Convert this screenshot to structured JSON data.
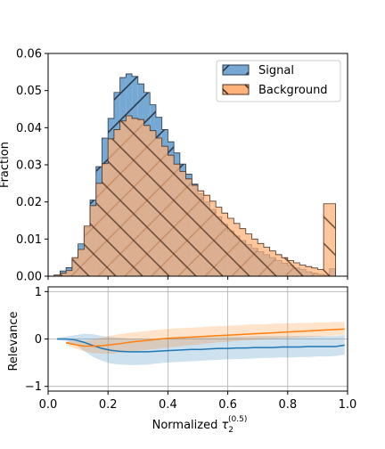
{
  "chart_data": [
    {
      "type": "histogram",
      "ylabel": "Fraction",
      "ylim": [
        0,
        0.06
      ],
      "xlim": [
        0,
        1
      ],
      "yticks": [
        "0.00",
        "0.01",
        "0.02",
        "0.03",
        "0.04",
        "0.05",
        "0.06"
      ],
      "grid": false,
      "legend_position": "top-right",
      "bin_edges_start": 0.02,
      "bin_width": 0.02,
      "series": [
        {
          "name": "Signal",
          "color": "#1f77b4",
          "hatch": "//",
          "values": [
            0.0003,
            0.0014,
            0.0023,
            0.0046,
            0.0087,
            0.0132,
            0.0205,
            0.0295,
            0.0372,
            0.0425,
            0.0495,
            0.0535,
            0.0545,
            0.0538,
            0.0518,
            0.0495,
            0.0462,
            0.0428,
            0.0395,
            0.0362,
            0.0332,
            0.0302,
            0.0275,
            0.0248,
            0.0222,
            0.02,
            0.018,
            0.016,
            0.014,
            0.0122,
            0.0108,
            0.0096,
            0.0085,
            0.0075,
            0.0066,
            0.0058,
            0.005,
            0.0042,
            0.0035,
            0.0029,
            0.0022,
            0.0018,
            0.0012,
            0.0008,
            0.0005,
            0.0003,
            0.002
          ]
        },
        {
          "name": "Background",
          "color": "#ff7f0e",
          "hatch": "\\\\",
          "values": [
            0.0003,
            0.0008,
            0.0015,
            0.005,
            0.0072,
            0.0135,
            0.019,
            0.025,
            0.0303,
            0.037,
            0.0395,
            0.0418,
            0.0432,
            0.0425,
            0.0422,
            0.0406,
            0.0392,
            0.0372,
            0.035,
            0.0326,
            0.0302,
            0.0282,
            0.0262,
            0.0245,
            0.023,
            0.0218,
            0.0202,
            0.0186,
            0.017,
            0.0156,
            0.0142,
            0.0128,
            0.0114,
            0.01,
            0.0088,
            0.0078,
            0.0068,
            0.0058,
            0.005,
            0.0042,
            0.0036,
            0.003,
            0.0026,
            0.0022,
            0.0018,
            0.0195,
            0.0195
          ]
        }
      ]
    },
    {
      "type": "line",
      "xlabel": "Normalized τ2(0.5)",
      "xlabel_parts": {
        "main": "Normalized ",
        "symbol": "τ",
        "sub": "2",
        "sup": "(0.5)"
      },
      "ylabel": "Relevance",
      "xlim": [
        0,
        1
      ],
      "ylim": [
        -1.1,
        1.1
      ],
      "xticks": [
        "0.0",
        "0.2",
        "0.4",
        "0.6",
        "0.8",
        "1.0"
      ],
      "yticks": [
        "−1",
        "0",
        "1"
      ],
      "grid": true,
      "x": [
        0.03,
        0.06,
        0.09,
        0.12,
        0.15,
        0.18,
        0.21,
        0.24,
        0.27,
        0.3,
        0.33,
        0.36,
        0.39,
        0.42,
        0.45,
        0.48,
        0.51,
        0.54,
        0.57,
        0.6,
        0.63,
        0.66,
        0.69,
        0.72,
        0.75,
        0.78,
        0.81,
        0.84,
        0.87,
        0.9,
        0.93,
        0.96,
        0.99
      ],
      "series": [
        {
          "color": "#1f77b4",
          "values": [
            0.0,
            0.0,
            -0.02,
            -0.07,
            -0.14,
            -0.2,
            -0.24,
            -0.26,
            -0.27,
            -0.27,
            -0.27,
            -0.26,
            -0.25,
            -0.24,
            -0.23,
            -0.22,
            -0.22,
            -0.21,
            -0.2,
            -0.2,
            -0.19,
            -0.19,
            -0.18,
            -0.18,
            -0.18,
            -0.17,
            -0.17,
            -0.17,
            -0.16,
            -0.16,
            -0.16,
            -0.16,
            -0.13
          ],
          "lower": [
            -0.02,
            -0.05,
            -0.12,
            -0.25,
            -0.38,
            -0.46,
            -0.52,
            -0.54,
            -0.55,
            -0.55,
            -0.54,
            -0.52,
            -0.5,
            -0.49,
            -0.48,
            -0.47,
            -0.46,
            -0.45,
            -0.44,
            -0.43,
            -0.42,
            -0.42,
            -0.41,
            -0.4,
            -0.4,
            -0.39,
            -0.39,
            -0.38,
            -0.38,
            -0.37,
            -0.37,
            -0.36,
            -0.33
          ],
          "upper": [
            0.02,
            0.05,
            0.08,
            0.11,
            0.1,
            0.06,
            0.04,
            0.02,
            0.01,
            0.01,
            0.0,
            0.0,
            0.0,
            0.01,
            0.02,
            0.03,
            0.03,
            0.04,
            0.04,
            0.05,
            0.05,
            0.05,
            0.06,
            0.06,
            0.06,
            0.06,
            0.06,
            0.06,
            0.06,
            0.06,
            0.06,
            0.06,
            0.08
          ]
        },
        {
          "color": "#ff7f0e",
          "x_start": 0.07,
          "values": [
            null,
            -0.08,
            -0.12,
            -0.15,
            -0.15,
            -0.14,
            -0.12,
            -0.1,
            -0.07,
            -0.05,
            -0.03,
            -0.01,
            0.01,
            0.02,
            0.03,
            0.04,
            0.05,
            0.06,
            0.07,
            0.08,
            0.09,
            0.1,
            0.11,
            0.12,
            0.13,
            0.14,
            0.15,
            0.16,
            0.17,
            0.18,
            0.19,
            0.2,
            0.21
          ],
          "lower": [
            null,
            -0.12,
            -0.2,
            -0.26,
            -0.3,
            -0.31,
            -0.31,
            -0.29,
            -0.27,
            -0.25,
            -0.23,
            -0.21,
            -0.19,
            -0.17,
            -0.15,
            -0.13,
            -0.11,
            -0.09,
            -0.07,
            -0.06,
            -0.04,
            -0.03,
            -0.02,
            -0.01,
            0.0,
            0.01,
            0.02,
            0.03,
            0.04,
            0.05,
            0.06,
            0.07,
            0.08
          ],
          "upper": [
            null,
            -0.04,
            -0.04,
            -0.04,
            -0.01,
            0.03,
            0.07,
            0.1,
            0.13,
            0.15,
            0.17,
            0.19,
            0.21,
            0.22,
            0.23,
            0.24,
            0.25,
            0.26,
            0.27,
            0.28,
            0.29,
            0.3,
            0.31,
            0.31,
            0.32,
            0.33,
            0.33,
            0.34,
            0.34,
            0.35,
            0.35,
            0.36,
            0.36
          ]
        }
      ]
    }
  ]
}
